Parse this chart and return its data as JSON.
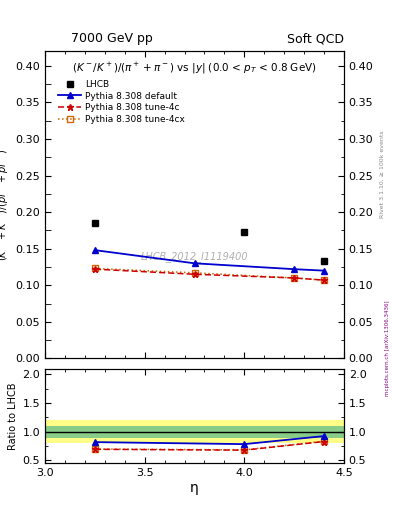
{
  "title_left": "7000 GeV pp",
  "title_right": "Soft QCD",
  "subtitle": "(K⁻/K⁺)/(π⁺+π⁻) vs |y| (0.0 < p_T < 0.8 GeV)",
  "xlabel": "η",
  "ylabel_main": "(K⁺ + K⁻)/(pi⁺ + pi⁻)",
  "ylabel_ratio": "Ratio to LHCB",
  "watermark": "LHCB_2012_I1119400",
  "rivet_label": "Rivet 3.1.10, ≥ 100k events",
  "mcplots_label": "mcplots.cern.ch [arXiv:1306.3436]",
  "eta_lhcb": [
    3.25,
    4.0,
    4.4
  ],
  "val_lhcb": [
    0.185,
    0.173,
    0.133
  ],
  "eta_default": [
    3.25,
    3.75,
    4.25,
    4.4
  ],
  "val_default": [
    0.148,
    0.13,
    0.122,
    0.12
  ],
  "eta_tune4c": [
    3.25,
    3.75,
    4.25,
    4.4
  ],
  "val_tune4c": [
    0.122,
    0.115,
    0.11,
    0.107
  ],
  "eta_tune4cx": [
    3.25,
    3.75,
    4.25,
    4.4
  ],
  "val_tune4cx": [
    0.123,
    0.117,
    0.11,
    0.107
  ],
  "eta_ratio": [
    3.25,
    4.0,
    4.4
  ],
  "ratio_default": [
    0.82,
    0.785,
    0.925
  ],
  "ratio_tune4c": [
    0.695,
    0.68,
    0.83
  ],
  "ratio_tune4cx": [
    0.7,
    0.685,
    0.835
  ],
  "ylim_main": [
    0.0,
    0.42
  ],
  "ylim_ratio": [
    0.45,
    2.1
  ],
  "xlim": [
    3.0,
    4.5
  ],
  "color_lhcb": "#000000",
  "color_default": "#0000cc",
  "color_tune4c": "#cc0000",
  "color_tune4cx": "#cc6600",
  "green_band": [
    0.9,
    1.1
  ],
  "yellow_band": [
    0.8,
    1.2
  ],
  "yticks_main": [
    0.0,
    0.05,
    0.1,
    0.15,
    0.2,
    0.25,
    0.3,
    0.35,
    0.4
  ],
  "yticks_ratio": [
    0.5,
    1.0,
    1.5,
    2.0
  ],
  "xticks": [
    3.0,
    3.5,
    4.0,
    4.5
  ]
}
